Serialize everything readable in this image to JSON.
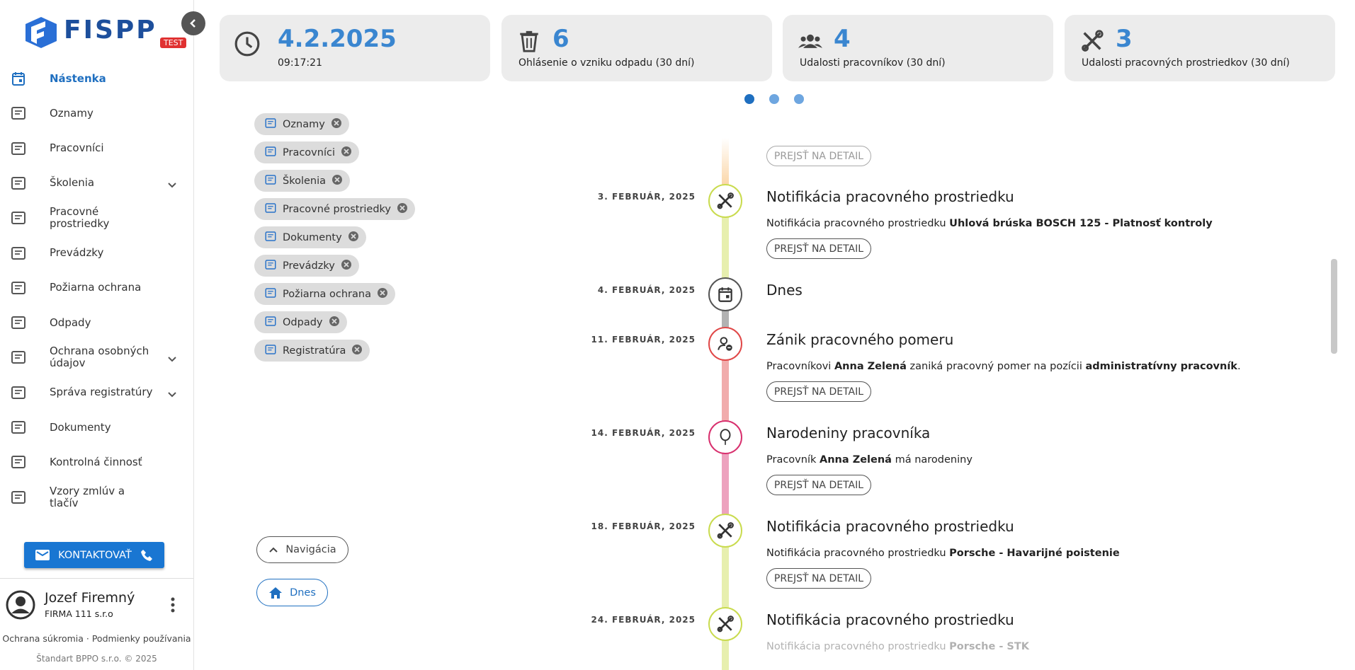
{
  "logo": {
    "text": "FISPP",
    "badge": "TEST"
  },
  "stats": [
    {
      "value": "4.2.2025",
      "label": "09:17:21",
      "icon": "clock"
    },
    {
      "value": 6,
      "label": "Ohlásenie o vzniku odpadu (30 dní)",
      "icon": "bin"
    },
    {
      "value": 4,
      "label": "Udalosti pracovníkov (30 dní)",
      "icon": "people"
    },
    {
      "value": 3,
      "label": "Udalosti pracovných prostriedkov (30 dní)",
      "icon": "tools"
    }
  ],
  "menu": [
    {
      "label": "Nástenka",
      "active": true
    },
    {
      "label": "Oznamy"
    },
    {
      "label": "Pracovníci"
    },
    {
      "label": "Školenia",
      "expandable": true
    },
    {
      "label": "Pracovné prostriedky"
    },
    {
      "label": "Prevádzky"
    },
    {
      "label": "Požiarna ochrana"
    },
    {
      "label": "Odpady"
    },
    {
      "label": "Ochrana osobných údajov",
      "expandable": true
    },
    {
      "label": "Správa registratúry",
      "expandable": true
    },
    {
      "label": "Dokumenty"
    },
    {
      "label": "Kontrolná činnosť"
    },
    {
      "label": "Vzory zmlúv a tlačív"
    }
  ],
  "contact_button": "KONTAKTOVAŤ",
  "user": {
    "name": "Jozef Firemný",
    "company": "FIRMA 111 s.r.o"
  },
  "footer": {
    "links": "Ochrana súkromia · Podmienky používania",
    "copyright": "Štandart BPPO s.r.o. © 2025"
  },
  "filters": [
    "Oznamy",
    "Pracovníci",
    "Školenia",
    "Pracovné prostriedky",
    "Dokumenty",
    "Prevádzky",
    "Požiarna ochrana",
    "Odpady",
    "Registratúra"
  ],
  "nav_buttons": {
    "navigation": "Navigácia",
    "today": "Dnes"
  },
  "timeline": [
    {
      "button": "PREJSŤ NA DETAIL",
      "color": "#f9c98c"
    },
    {
      "date": "3. FEBRUÁR, 2025",
      "title": "Notifikácia pracovného prostriedku",
      "icon": "tools",
      "color": "#c9db4e",
      "description": [
        {
          "text": "Notifikácia pracovného prostriedku "
        },
        {
          "text": "Uhlová brúska BOSCH 125 - Platnosť kontroly",
          "bold": true
        }
      ],
      "button": "PREJSŤ NA DETAIL"
    },
    {
      "date": "4. FEBRUÁR, 2025",
      "title": "Dnes",
      "icon": "calendar",
      "color": "#555555"
    },
    {
      "date": "11. FEBRUÁR, 2025",
      "title": "Zánik pracovného pomeru",
      "icon": "person",
      "color": "#e04848",
      "description": [
        {
          "text": "Pracovníkovi "
        },
        {
          "text": "Anna Zelená",
          "bold": true
        },
        {
          "text": " zaniká pracovný pomer na pozícii "
        },
        {
          "text": "administratívny pracovník",
          "bold": true
        },
        {
          "text": "."
        }
      ],
      "button": "PREJSŤ NA DETAIL"
    },
    {
      "date": "14. FEBRUÁR, 2025",
      "title": "Narodeniny pracovníka",
      "icon": "balloon",
      "color": "#d8306e",
      "description": [
        {
          "text": "Pracovník "
        },
        {
          "text": "Anna Zelená",
          "bold": true
        },
        {
          "text": " má narodeniny"
        }
      ],
      "button": "PREJSŤ NA DETAIL"
    },
    {
      "date": "18. FEBRUÁR, 2025",
      "title": "Notifikácia pracovného prostriedku",
      "icon": "tools",
      "color": "#c9db4e",
      "description": [
        {
          "text": "Notifikácia pracovného prostriedku "
        },
        {
          "text": "Porsche - Havarijné poistenie",
          "bold": true
        }
      ],
      "button": "PREJSŤ NA DETAIL"
    },
    {
      "date": "24. FEBRUÁR, 2025",
      "title": "Notifikácia pracovného prostriedku",
      "icon": "tools",
      "color": "#c9db4e",
      "description": [
        {
          "text": "Notifikácia pracovného prostriedku "
        },
        {
          "text": "Porsche - STK",
          "bold": true
        }
      ]
    }
  ]
}
